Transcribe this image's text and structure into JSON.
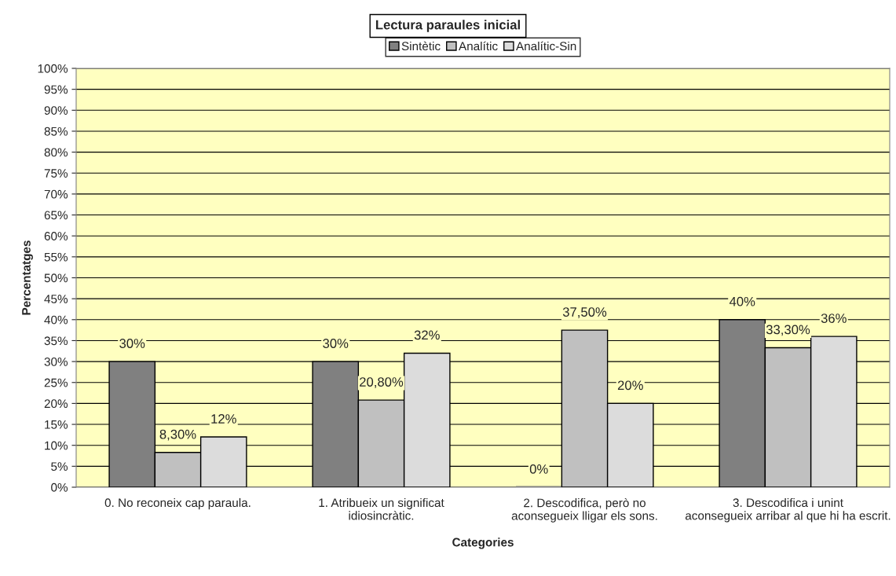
{
  "chart_data": {
    "type": "bar",
    "title": "Lectura paraules inicial",
    "xlabel": "Categories",
    "ylabel": "Percentatges",
    "categories": [
      "0. No reconeix cap paraula.",
      "1. Atribueix un significat idiosincràtic.",
      "2. Descodifica, però no aconsegueix lligar els sons.",
      "3. Descodifica i unint aconsegueix arribar al que hi ha escrit."
    ],
    "series": [
      {
        "name": "Sintètic",
        "color": "#808080",
        "values": [
          30,
          30,
          0,
          40
        ],
        "value_labels": [
          "30%",
          "30%",
          "0%",
          "40%"
        ]
      },
      {
        "name": "Analític",
        "color": "#c0c0c0",
        "values": [
          8.3,
          20.8,
          37.5,
          33.3
        ],
        "value_labels": [
          "8,30%",
          "20,80%",
          "37,50%",
          "33,30%"
        ]
      },
      {
        "name": "Analític-Sin",
        "color": "#dcdcdc",
        "values": [
          12,
          32,
          20,
          36
        ],
        "value_labels": [
          "12%",
          "32%",
          "20%",
          "36%"
        ]
      }
    ],
    "ylim": [
      0,
      100
    ],
    "yticks": [
      {
        "value": 0,
        "label": "0%"
      },
      {
        "value": 5,
        "label": "5%"
      },
      {
        "value": 10,
        "label": "10%"
      },
      {
        "value": 15,
        "label": "15%"
      },
      {
        "value": 20,
        "label": "20%"
      },
      {
        "value": 25,
        "label": "25%"
      },
      {
        "value": 30,
        "label": "30%"
      },
      {
        "value": 35,
        "label": "35%"
      },
      {
        "value": 40,
        "label": "40%"
      },
      {
        "value": 45,
        "label": "45%"
      },
      {
        "value": 50,
        "label": "50%"
      },
      {
        "value": 55,
        "label": "55%"
      },
      {
        "value": 60,
        "label": "60%"
      },
      {
        "value": 65,
        "label": "65%"
      },
      {
        "value": 70,
        "label": "70%"
      },
      {
        "value": 75,
        "label": "75%"
      },
      {
        "value": 80,
        "label": "80%"
      },
      {
        "value": 85,
        "label": "85%"
      },
      {
        "value": 90,
        "label": "90%"
      },
      {
        "value": 95,
        "label": "95%"
      },
      {
        "value": 100,
        "label": "100%"
      }
    ],
    "grid": "y",
    "legend": "top"
  }
}
